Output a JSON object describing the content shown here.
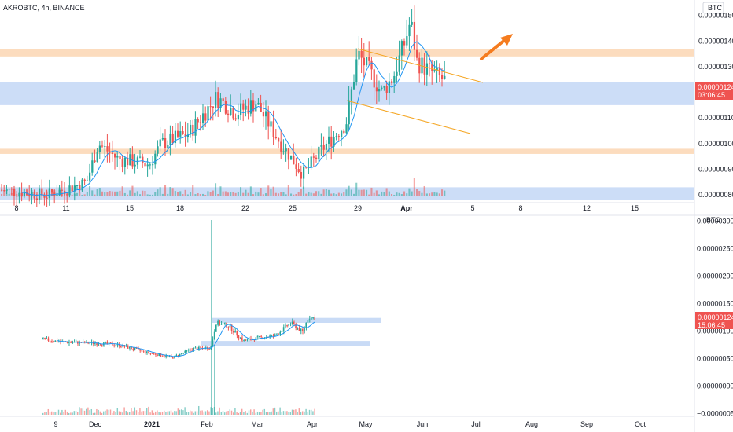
{
  "header": {
    "title": "AKROBTC, 4h, BINANCE"
  },
  "colors": {
    "up": "#26a69a",
    "down": "#ef5350",
    "ma": "#2196f3",
    "support_zone": "#bbd2f4",
    "resistance_zone": "#fbd0a8",
    "arrow": "#f57c1f",
    "channel": "#f5a623",
    "price_tag": "#ef5350"
  },
  "top_panel": {
    "currency_badge": "BTC",
    "price_label": "0.00000124",
    "timer_label": "03:06:45",
    "y_ticks": [
      "0.00000150",
      "0.00000140",
      "0.00000130",
      "0.00000110",
      "0.00000100",
      "0.00000090",
      "0.00000080"
    ],
    "x_ticks": [
      "8",
      "11",
      "15",
      "18",
      "22",
      "25",
      "29",
      "Apr",
      "5",
      "8",
      "12",
      "15"
    ]
  },
  "bottom_panel": {
    "currency_badge": "BTC",
    "price_label": "0.00000124",
    "timer_label": "15:06:45",
    "y_ticks": [
      "0.00000300",
      "0.00000250",
      "0.00000200",
      "0.00000150",
      "0.00000100",
      "0.00000050",
      "0.00000000",
      "−0.00000050"
    ],
    "x_ticks": [
      "9",
      "Dec",
      "2021",
      "Feb",
      "Mar",
      "Apr",
      "May",
      "Jun",
      "Jul",
      "Aug",
      "Sep",
      "Oct"
    ]
  },
  "chart_data": [
    {
      "type": "candlestick",
      "timeframe": "4h",
      "ylim": [
        7.7e-07,
        1.56e-06
      ],
      "series": [
        {
          "kind": "ohlc",
          "x_labels": [
            "8",
            "11",
            "15",
            "18",
            "22",
            "25",
            "29",
            "Apr"
          ],
          "close_approx": [
            8.3e-07,
            9.8e-07,
            9.3e-07,
            1.05e-06,
            1.18e-06,
            1e-06,
            9e-07,
            1.25e-06,
            1.3e-06,
            1.5e-06,
            1.28e-06,
            1.24e-06
          ]
        },
        {
          "name": "MA",
          "kind": "line"
        }
      ],
      "zones": [
        {
          "type": "resistance",
          "from": 1.34e-06,
          "to": 1.37e-06
        },
        {
          "type": "support",
          "from": 1.15e-06,
          "to": 1.24e-06
        },
        {
          "type": "resistance",
          "from": 9.6e-07,
          "to": 9.8e-07
        },
        {
          "type": "support",
          "from": 7.8e-07,
          "to": 8.3e-07
        }
      ],
      "last_price": 1.24e-06
    },
    {
      "type": "candlestick",
      "timeframe": "1D",
      "ylim": [
        -5.5e-07,
        3.05e-06
      ],
      "series": [
        {
          "kind": "ohlc",
          "x_labels": [
            "9",
            "Dec",
            "2021",
            "Feb",
            "Mar",
            "Apr"
          ],
          "close_approx": [
            8.5e-07,
            7.8e-07,
            6.5e-07,
            5e-07,
            6e-07,
            1.15e-06,
            8e-07,
            9e-07,
            1.24e-06
          ]
        },
        {
          "name": "MA",
          "kind": "line"
        }
      ],
      "zones": [
        {
          "type": "support",
          "from": 1.15e-06,
          "to": 1.24e-06
        },
        {
          "type": "support",
          "from": 7.5e-07,
          "to": 8.2e-07
        }
      ],
      "last_price": 1.24e-06
    }
  ]
}
